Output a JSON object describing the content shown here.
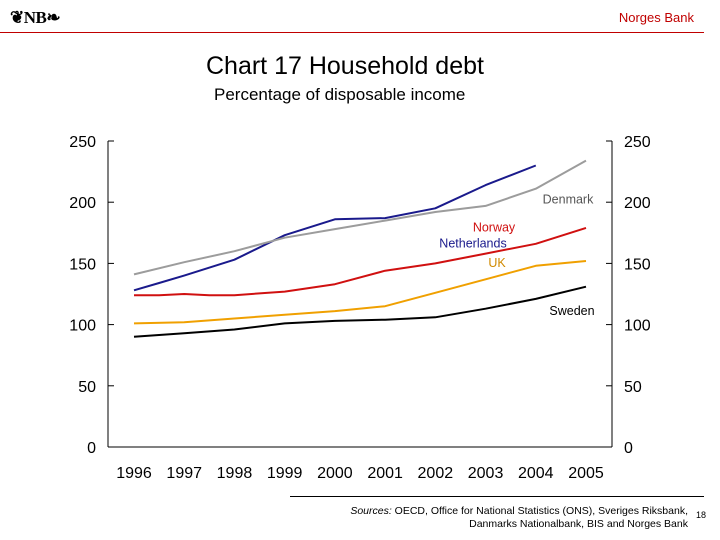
{
  "header": {
    "logo_text": "❦NB❧",
    "bank_name": "Norges Bank"
  },
  "footer": {
    "sources_label": "Sources:",
    "sources_line1": "OECD, Office for National Statistics (ONS), Sveriges Riksbank,",
    "sources_line2": "Danmarks Nationalbank, BIS and Norges Bank",
    "page_number": "18"
  },
  "chart_data": {
    "type": "line",
    "title": "Chart 17 Household debt",
    "subtitle": "Percentage of disposable income",
    "xlabel": "",
    "ylabel": "",
    "x": [
      1996,
      1997,
      1998,
      1999,
      2000,
      2001,
      2002,
      2003,
      2004,
      2005
    ],
    "x_tick_labels": [
      "1996",
      "1997",
      "1998",
      "1999",
      "2000",
      "2001",
      "2002",
      "2003",
      "2004",
      "2005"
    ],
    "xlim": [
      1996,
      2005
    ],
    "ylim": [
      0,
      250
    ],
    "y_ticks": [
      0,
      50,
      100,
      150,
      200,
      250
    ],
    "y_tick_labels": [
      "0",
      "50",
      "100",
      "150",
      "200",
      "250"
    ],
    "right_axis_mirrors_left": true,
    "grid": false,
    "legend": "inline labels",
    "series": [
      {
        "name": "Netherlands",
        "color": "#1a1a8c",
        "points": [
          [
            1996.0,
            128
          ],
          [
            1996.5,
            134
          ],
          [
            1997.0,
            140
          ],
          [
            1998.0,
            153
          ],
          [
            1999.0,
            173
          ],
          [
            2000.0,
            186
          ],
          [
            2001.0,
            187
          ],
          [
            2002.0,
            195
          ],
          [
            2003.0,
            214
          ],
          [
            2003.5,
            222
          ],
          [
            2004.0,
            230
          ]
        ]
      },
      {
        "name": "Denmark",
        "color": "#9c9c9c",
        "points": [
          [
            1996.0,
            141
          ],
          [
            1997.0,
            151
          ],
          [
            1998.0,
            160
          ],
          [
            1999.0,
            171
          ],
          [
            2000.0,
            178
          ],
          [
            2001.0,
            185
          ],
          [
            2002.0,
            192
          ],
          [
            2003.0,
            197
          ],
          [
            2004.0,
            211
          ],
          [
            2005.0,
            234
          ]
        ]
      },
      {
        "name": "Norway",
        "color": "#d01010",
        "points": [
          [
            1996.0,
            124
          ],
          [
            1996.5,
            124
          ],
          [
            1997.0,
            125
          ],
          [
            1997.5,
            124
          ],
          [
            1998.0,
            124
          ],
          [
            1999.0,
            127
          ],
          [
            2000.0,
            133
          ],
          [
            2001.0,
            144
          ],
          [
            2002.0,
            150
          ],
          [
            2003.0,
            158
          ],
          [
            2004.0,
            166
          ],
          [
            2005.0,
            179
          ]
        ]
      },
      {
        "name": "UK",
        "color": "#f0a000",
        "points": [
          [
            1996.0,
            101
          ],
          [
            1997.0,
            102
          ],
          [
            1998.0,
            105
          ],
          [
            1999.0,
            108
          ],
          [
            2000.0,
            111
          ],
          [
            2001.0,
            115
          ],
          [
            2002.0,
            126
          ],
          [
            2003.0,
            137
          ],
          [
            2004.0,
            148
          ],
          [
            2005.0,
            152
          ]
        ]
      },
      {
        "name": "Sweden",
        "color": "#000000",
        "points": [
          [
            1996.0,
            90
          ],
          [
            1997.0,
            93
          ],
          [
            1998.0,
            96
          ],
          [
            1999.0,
            101
          ],
          [
            2000.0,
            103
          ],
          [
            2001.0,
            104
          ],
          [
            2002.0,
            106
          ],
          [
            2003.0,
            113
          ],
          [
            2004.0,
            121
          ],
          [
            2005.0,
            131
          ]
        ]
      }
    ]
  }
}
